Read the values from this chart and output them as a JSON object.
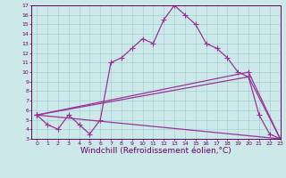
{
  "background_color": "#cce8e8",
  "grid_color": "#99cccc",
  "line_color": "#993399",
  "xlim": [
    -0.5,
    23
  ],
  "ylim": [
    3,
    17
  ],
  "xlabel": "Windchill (Refroidissement éolien,°C)",
  "xticks": [
    0,
    1,
    2,
    3,
    4,
    5,
    6,
    7,
    8,
    9,
    10,
    11,
    12,
    13,
    14,
    15,
    16,
    17,
    18,
    19,
    20,
    21,
    22,
    23
  ],
  "yticks": [
    3,
    4,
    5,
    6,
    7,
    8,
    9,
    10,
    11,
    12,
    13,
    14,
    15,
    16,
    17
  ],
  "line1_x": [
    0,
    1,
    2,
    3,
    4,
    5,
    6,
    7,
    8,
    9,
    10,
    11,
    12,
    13,
    14,
    15,
    16,
    17,
    18,
    19,
    20,
    21,
    22,
    23
  ],
  "line1_y": [
    5.5,
    4.5,
    4.0,
    5.5,
    4.5,
    3.5,
    5.0,
    11.0,
    11.5,
    12.5,
    13.5,
    13.0,
    15.5,
    17.0,
    16.0,
    15.0,
    13.0,
    12.5,
    11.5,
    10.0,
    9.5,
    5.5,
    3.5,
    3.0
  ],
  "line2_x": [
    0,
    23
  ],
  "line2_y": [
    5.5,
    3.0
  ],
  "line3_x": [
    0,
    20,
    23
  ],
  "line3_y": [
    5.5,
    9.5,
    3.0
  ],
  "line4_x": [
    0,
    20,
    23
  ],
  "line4_y": [
    5.5,
    10.0,
    3.0
  ],
  "marker": "+",
  "markersize": 4,
  "linewidth": 0.9,
  "tick_fontsize": 4.5,
  "xlabel_fontsize": 6.5,
  "spine_color": "#660066"
}
